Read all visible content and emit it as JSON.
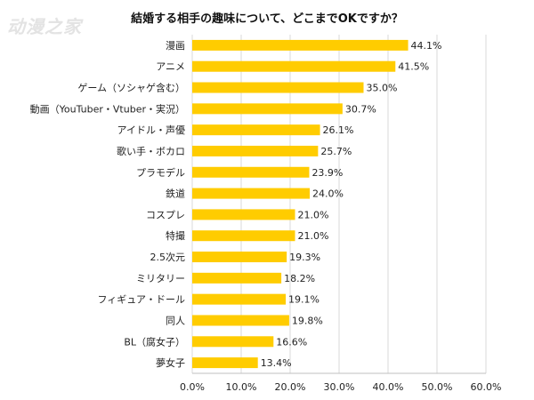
{
  "watermark": "动漫之家",
  "chart_data": {
    "type": "bar",
    "orientation": "horizontal",
    "title": "結婚する相手の趣味について、どこまでOKですか？",
    "categories": [
      "漫画",
      "アニメ",
      "ゲーム（ソシャゲ含む）",
      "動画（YouTuber・Vtuber・実況）",
      "アイドル・声優",
      "歌い手・ボカロ",
      "プラモデル",
      "鉄道",
      "コスプレ",
      "特撮",
      "2.5次元",
      "ミリタリー",
      "フィギュア・ドール",
      "同人",
      "BL（腐女子）",
      "夢女子"
    ],
    "values": [
      44.1,
      41.5,
      35.0,
      30.7,
      26.1,
      25.7,
      23.9,
      24.0,
      21.0,
      21.0,
      19.3,
      18.2,
      19.1,
      19.8,
      16.6,
      13.4
    ],
    "value_labels": [
      "44.1%",
      "41.5%",
      "35.0%",
      "30.7%",
      "26.1%",
      "25.7%",
      "23.9%",
      "24.0%",
      "21.0%",
      "21.0%",
      "19.3%",
      "18.2%",
      "19.1%",
      "19.8%",
      "16.6%",
      "13.4%"
    ],
    "xlim": [
      0,
      60
    ],
    "x_ticks": [
      0,
      10,
      20,
      30,
      40,
      50,
      60
    ],
    "x_tick_labels": [
      "0.0%",
      "10.0%",
      "20.0%",
      "30.0%",
      "40.0%",
      "50.0%",
      "60.0%"
    ],
    "grid": "vertical",
    "bar_color": "#FFCC00",
    "grid_color": "#d9d9d9"
  }
}
